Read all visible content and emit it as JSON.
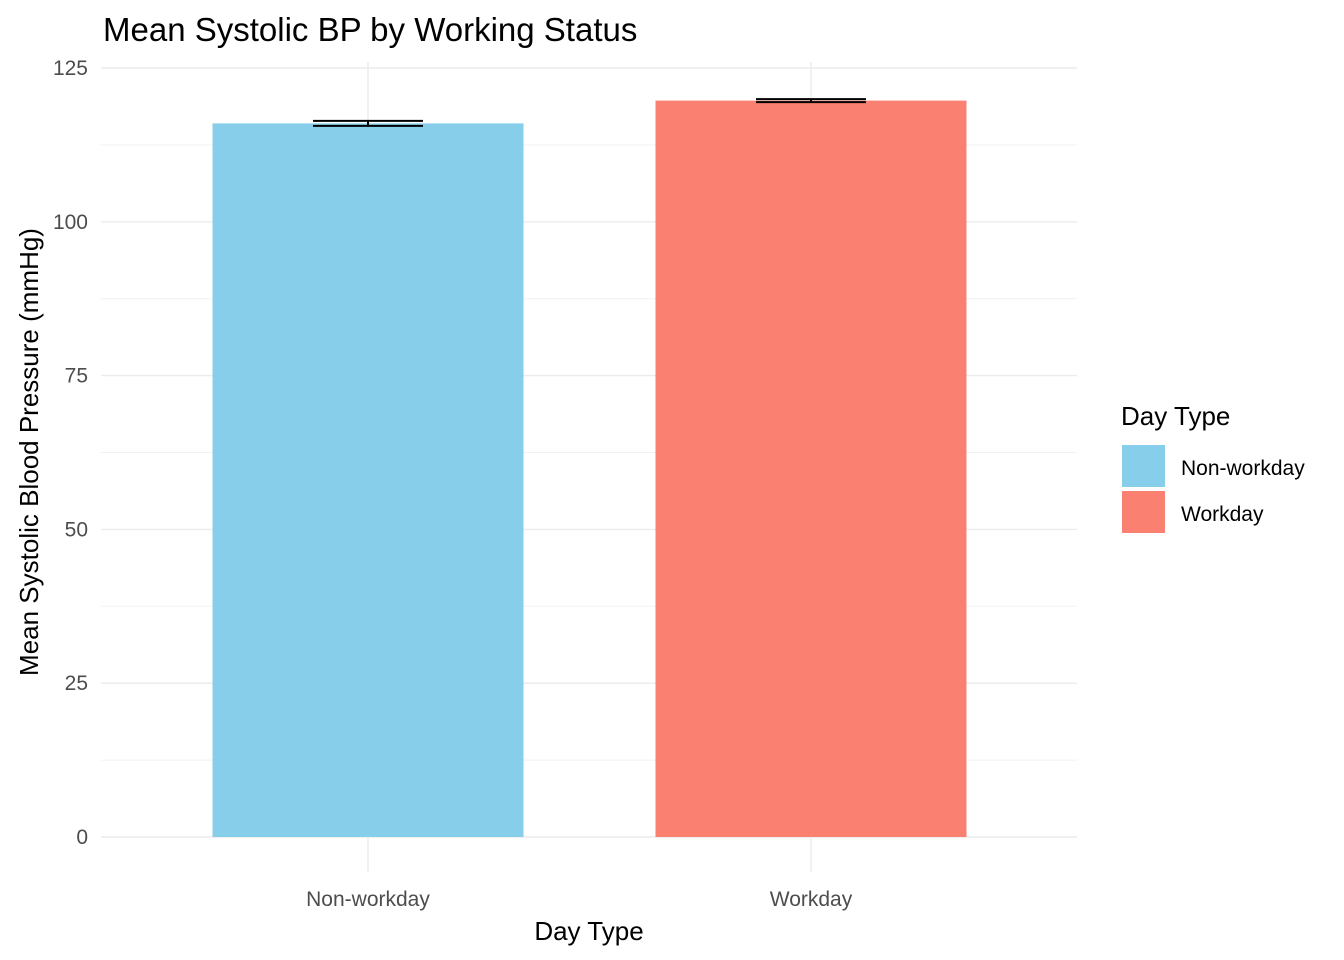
{
  "chart_data": {
    "type": "bar",
    "title": "Mean Systolic BP by Working Status",
    "xlabel": "Day Type",
    "ylabel": "Mean Systolic Blood Pressure (mmHg)",
    "categories": [
      "Non-workday",
      "Workday"
    ],
    "values": [
      116.0,
      119.7
    ],
    "error": [
      0.4,
      0.25
    ],
    "colors": [
      "#87CEEB",
      "#FA8072"
    ],
    "ylim": [
      0,
      125
    ],
    "yticks": [
      0,
      25,
      50,
      75,
      100,
      125
    ],
    "grid": true,
    "legend": {
      "title": "Day Type",
      "position": "right",
      "entries": [
        {
          "label": "Non-workday",
          "color": "#87CEEB"
        },
        {
          "label": "Workday",
          "color": "#FA8072"
        }
      ]
    }
  }
}
